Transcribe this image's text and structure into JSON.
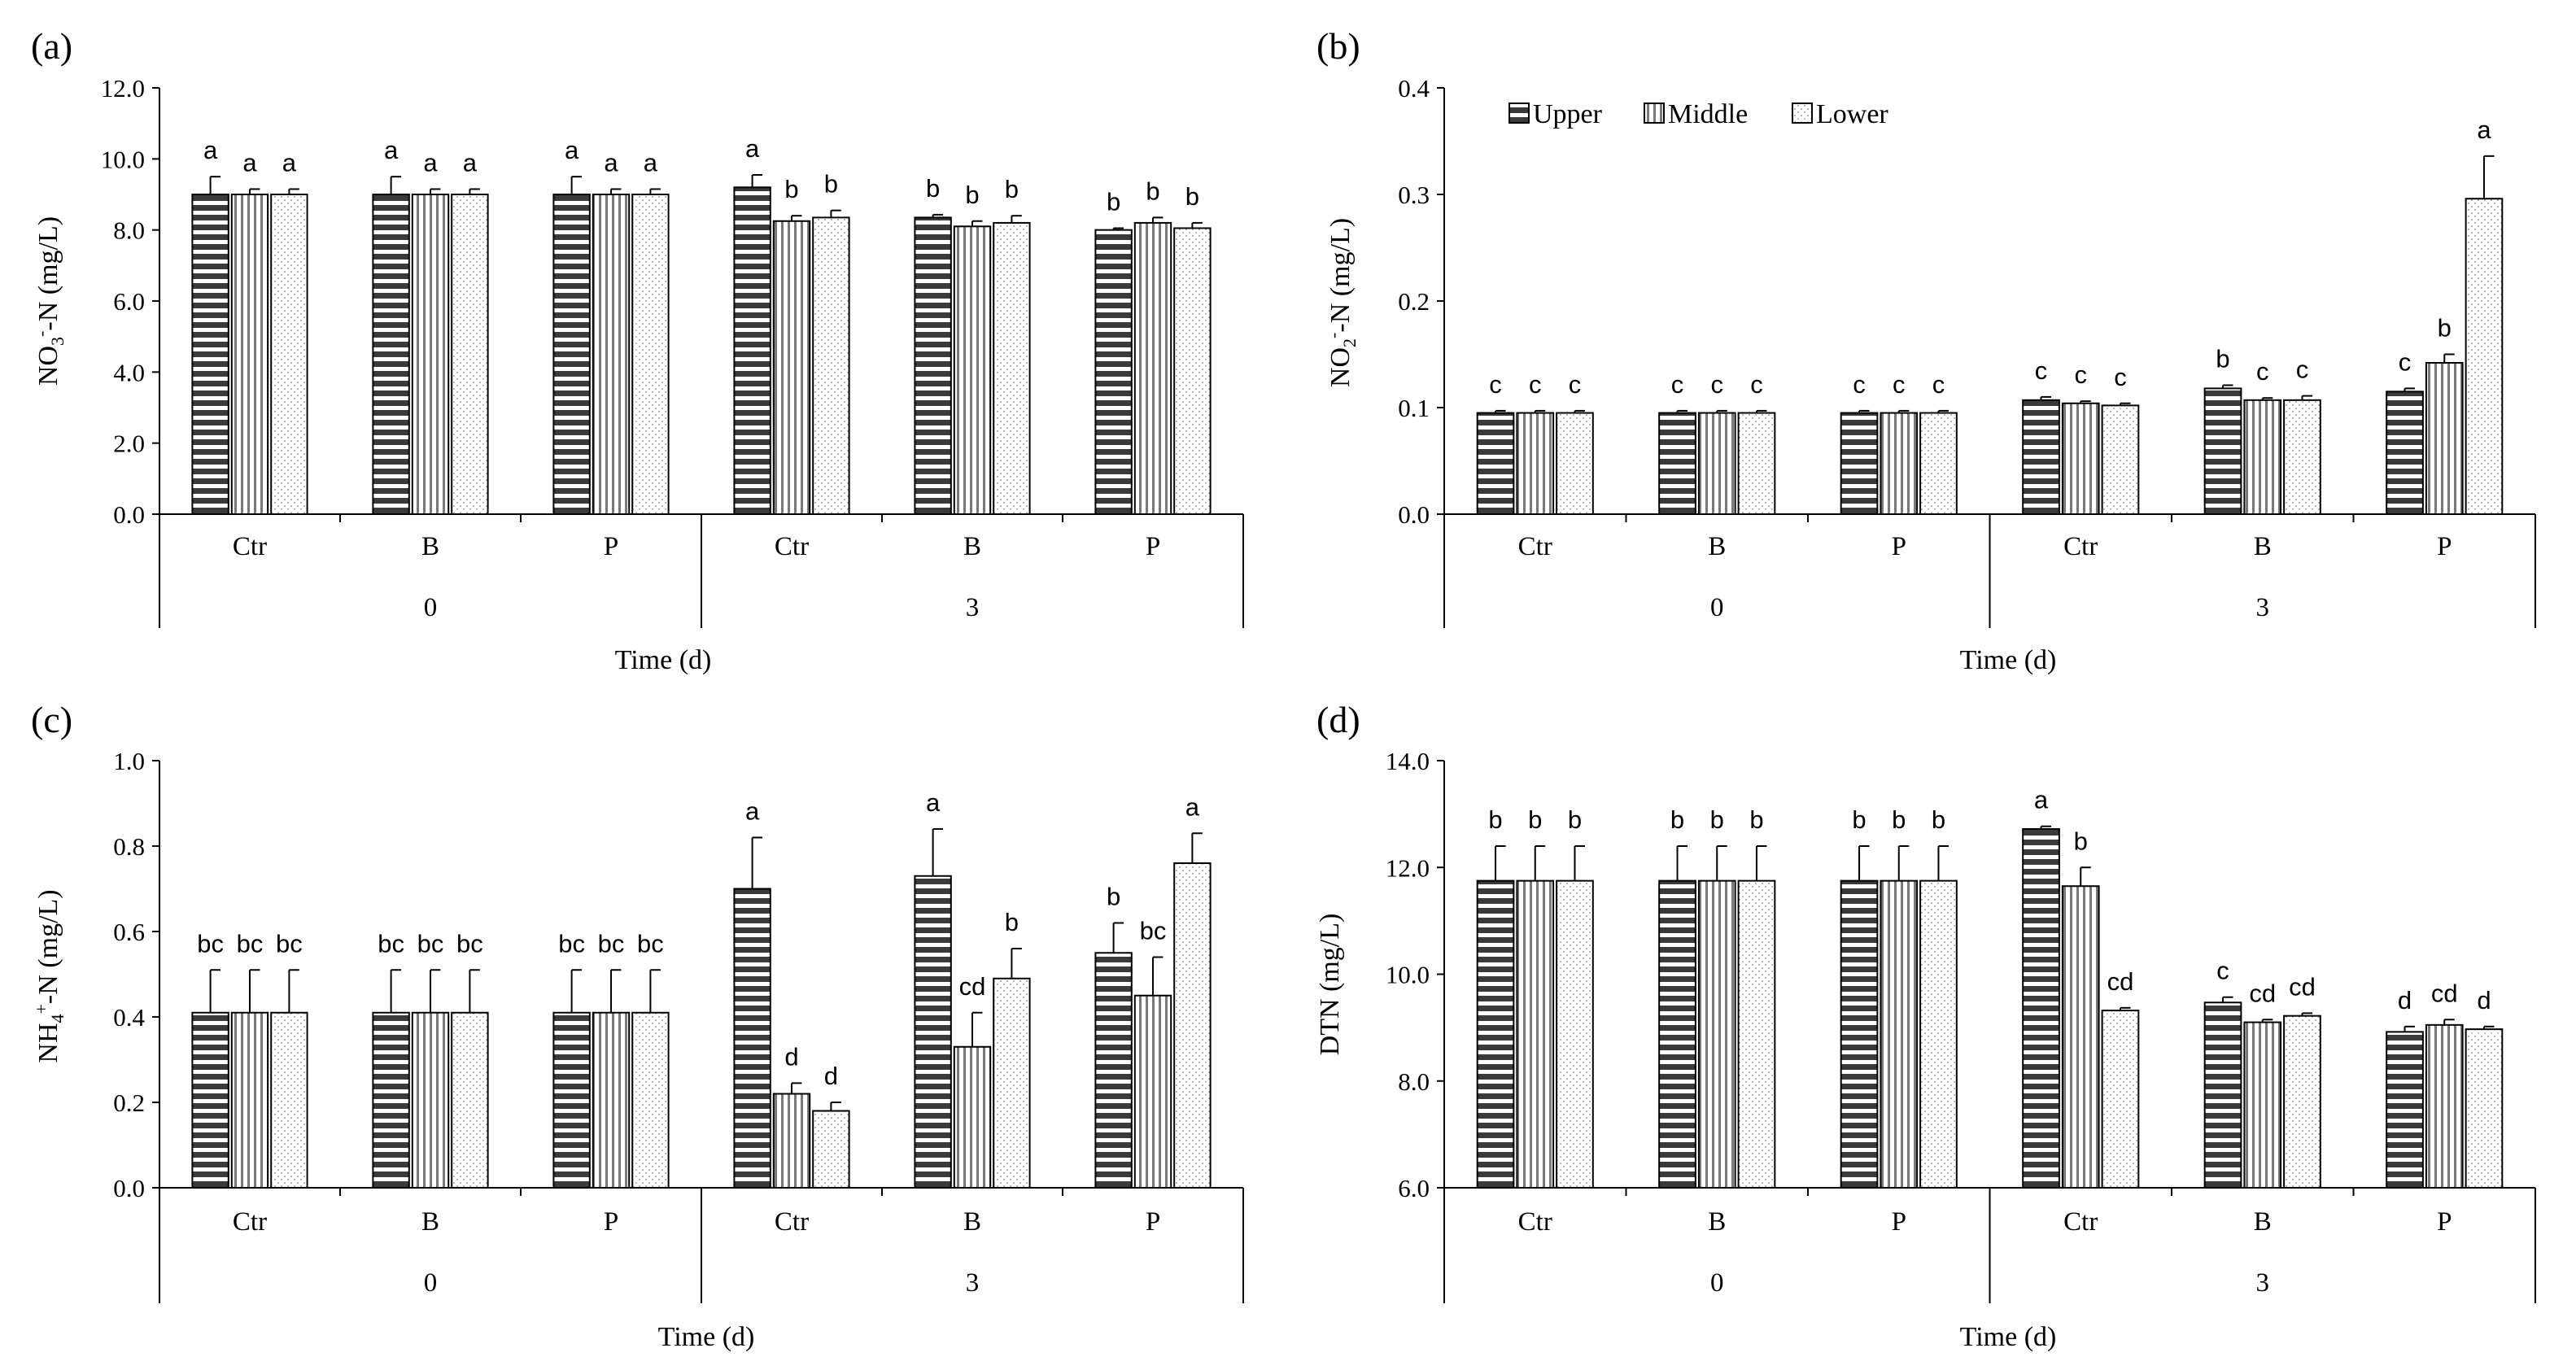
{
  "legend": {
    "labels": [
      "Upper",
      "Middle",
      "Lower"
    ]
  },
  "chart_data": [
    {
      "panel_label": "(a)",
      "type": "bar",
      "ylabel_main": "NO",
      "ylabel_sub": "3",
      "ylabel_sup": "-",
      "ylabel_rest": "-N (mg/L)",
      "ylim": [
        0,
        12
      ],
      "yticks": [
        "0.0",
        "2.0",
        "4.0",
        "6.0",
        "8.0",
        "10.0",
        "12.0"
      ],
      "xlabel": "Time (d)",
      "treatments": [
        "Ctr",
        "B",
        "P",
        "Ctr",
        "B",
        "P"
      ],
      "time_groups": [
        "0",
        "3"
      ],
      "series": [
        {
          "name": "Upper",
          "values": [
            9.0,
            9.0,
            9.0,
            9.2,
            8.35,
            8.0
          ],
          "errors": [
            0.5,
            0.5,
            0.5,
            0.35,
            0.08,
            0.05
          ],
          "letters": [
            "a",
            "a",
            "a",
            "a",
            "b",
            "b"
          ]
        },
        {
          "name": "Middle",
          "values": [
            9.0,
            9.0,
            9.0,
            8.25,
            8.1,
            8.2
          ],
          "errors": [
            0.15,
            0.15,
            0.15,
            0.15,
            0.15,
            0.15
          ],
          "letters": [
            "a",
            "a",
            "a",
            "b",
            "b",
            "b"
          ]
        },
        {
          "name": "Lower",
          "values": [
            9.0,
            9.0,
            9.0,
            8.35,
            8.2,
            8.05
          ],
          "errors": [
            0.15,
            0.15,
            0.15,
            0.2,
            0.2,
            0.15
          ],
          "letters": [
            "a",
            "a",
            "a",
            "b",
            "b",
            "b"
          ]
        }
      ]
    },
    {
      "panel_label": "(b)",
      "type": "bar",
      "ylabel_main": "NO",
      "ylabel_sub": "2",
      "ylabel_sup": "-",
      "ylabel_rest": "-N (mg/L)",
      "ylim": [
        0,
        0.4
      ],
      "yticks": [
        "0.0",
        "0.1",
        "0.2",
        "0.3",
        "0.4"
      ],
      "xlabel": "Time (d)",
      "treatments": [
        "Ctr",
        "B",
        "P",
        "Ctr",
        "B",
        "P"
      ],
      "time_groups": [
        "0",
        "3"
      ],
      "series": [
        {
          "name": "Upper",
          "values": [
            0.095,
            0.095,
            0.095,
            0.107,
            0.118,
            0.115
          ],
          "errors": [
            0.002,
            0.002,
            0.002,
            0.003,
            0.003,
            0.003
          ],
          "letters": [
            "c",
            "c",
            "c",
            "c",
            "b",
            "c"
          ]
        },
        {
          "name": "Middle",
          "values": [
            0.095,
            0.095,
            0.095,
            0.104,
            0.107,
            0.142
          ],
          "errors": [
            0.002,
            0.002,
            0.002,
            0.002,
            0.002,
            0.008
          ],
          "letters": [
            "c",
            "c",
            "c",
            "c",
            "c",
            "b"
          ]
        },
        {
          "name": "Lower",
          "values": [
            0.095,
            0.095,
            0.095,
            0.102,
            0.107,
            0.296
          ],
          "errors": [
            0.002,
            0.002,
            0.002,
            0.002,
            0.004,
            0.04
          ],
          "letters": [
            "c",
            "c",
            "c",
            "c",
            "c",
            "a"
          ]
        }
      ]
    },
    {
      "panel_label": "(c)",
      "type": "bar",
      "ylabel_main": "NH",
      "ylabel_sub": "4",
      "ylabel_sup": "+",
      "ylabel_rest": "-N (mg/L)",
      "ylim": [
        0,
        1
      ],
      "yticks": [
        "0.0",
        "0.2",
        "0.4",
        "0.6",
        "0.8",
        "1.0"
      ],
      "xlabel": "Time (d)",
      "treatments": [
        "Ctr",
        "B",
        "P",
        "Ctr",
        "B",
        "P"
      ],
      "time_groups": [
        "0",
        "3"
      ],
      "series": [
        {
          "name": "Upper",
          "values": [
            0.41,
            0.41,
            0.41,
            0.7,
            0.73,
            0.55
          ],
          "errors": [
            0.1,
            0.1,
            0.1,
            0.12,
            0.11,
            0.07
          ],
          "letters": [
            "bc",
            "bc",
            "bc",
            "a",
            "a",
            "b"
          ]
        },
        {
          "name": "Middle",
          "values": [
            0.41,
            0.41,
            0.41,
            0.22,
            0.33,
            0.45
          ],
          "errors": [
            0.1,
            0.1,
            0.1,
            0.025,
            0.08,
            0.09
          ],
          "letters": [
            "bc",
            "bc",
            "bc",
            "d",
            "cd",
            "bc"
          ]
        },
        {
          "name": "Lower",
          "values": [
            0.41,
            0.41,
            0.41,
            0.18,
            0.49,
            0.76
          ],
          "errors": [
            0.1,
            0.1,
            0.1,
            0.02,
            0.07,
            0.07
          ],
          "letters": [
            "bc",
            "bc",
            "bc",
            "d",
            "b",
            "a"
          ]
        }
      ]
    },
    {
      "panel_label": "(d)",
      "type": "bar",
      "ylabel_main": "DTN (mg/L)",
      "ylabel_sub": "",
      "ylabel_sup": "",
      "ylabel_rest": "",
      "ylim": [
        6,
        14
      ],
      "yticks": [
        "6.0",
        "8.0",
        "10.0",
        "12.0",
        "14.0"
      ],
      "xlabel": "Time (d)",
      "treatments": [
        "Ctr",
        "B",
        "P",
        "Ctr",
        "B",
        "P"
      ],
      "time_groups": [
        "0",
        "3"
      ],
      "series": [
        {
          "name": "Upper",
          "values": [
            11.75,
            11.75,
            11.75,
            12.72,
            9.47,
            8.92
          ],
          "errors": [
            0.65,
            0.65,
            0.65,
            0.05,
            0.1,
            0.1
          ],
          "letters": [
            "b",
            "b",
            "b",
            "a",
            "c",
            "d"
          ]
        },
        {
          "name": "Middle",
          "values": [
            11.75,
            11.75,
            11.75,
            11.65,
            9.1,
            9.05
          ],
          "errors": [
            0.65,
            0.65,
            0.65,
            0.35,
            0.05,
            0.1
          ],
          "letters": [
            "b",
            "b",
            "b",
            "b",
            "cd",
            "cd"
          ]
        },
        {
          "name": "Lower",
          "values": [
            11.75,
            11.75,
            11.75,
            9.32,
            9.22,
            8.97
          ],
          "errors": [
            0.65,
            0.65,
            0.65,
            0.05,
            0.05,
            0.05
          ],
          "letters": [
            "b",
            "b",
            "b",
            "cd",
            "cd",
            "d"
          ]
        }
      ]
    }
  ]
}
